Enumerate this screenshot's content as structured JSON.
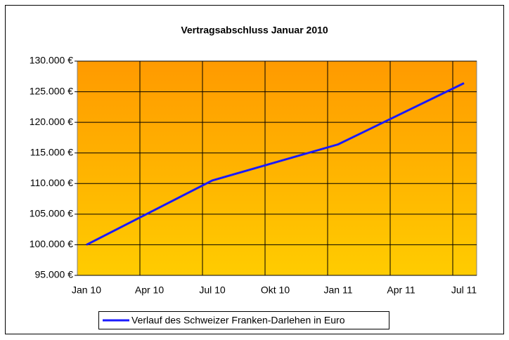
{
  "chart_data": {
    "type": "line",
    "title": "Vertragsabschluss Januar 2010",
    "categories": [
      "Jan 10",
      "Apr 10",
      "Jul 10",
      "Okt 10",
      "Jan 11",
      "Apr 11",
      "Jul 11"
    ],
    "series": [
      {
        "name": "Verlauf des Schweizer Franken-Darlehen in Euro",
        "color": "#1a1aff",
        "values": [
          100000,
          105250,
          110500,
          113450,
          116400,
          121400,
          126400
        ]
      }
    ],
    "ylim": [
      95000,
      130000
    ],
    "yticks": [
      {
        "value": 95000,
        "label": "95.000 €"
      },
      {
        "value": 100000,
        "label": "100.000 €"
      },
      {
        "value": 105000,
        "label": "105.000 €"
      },
      {
        "value": 110000,
        "label": "110.000 €"
      },
      {
        "value": 115000,
        "label": "115.000 €"
      },
      {
        "value": 120000,
        "label": "120.000 €"
      },
      {
        "value": 125000,
        "label": "125.000 €"
      },
      {
        "value": 130000,
        "label": "130.000 €"
      }
    ],
    "grid": true,
    "legend": "bottom"
  }
}
